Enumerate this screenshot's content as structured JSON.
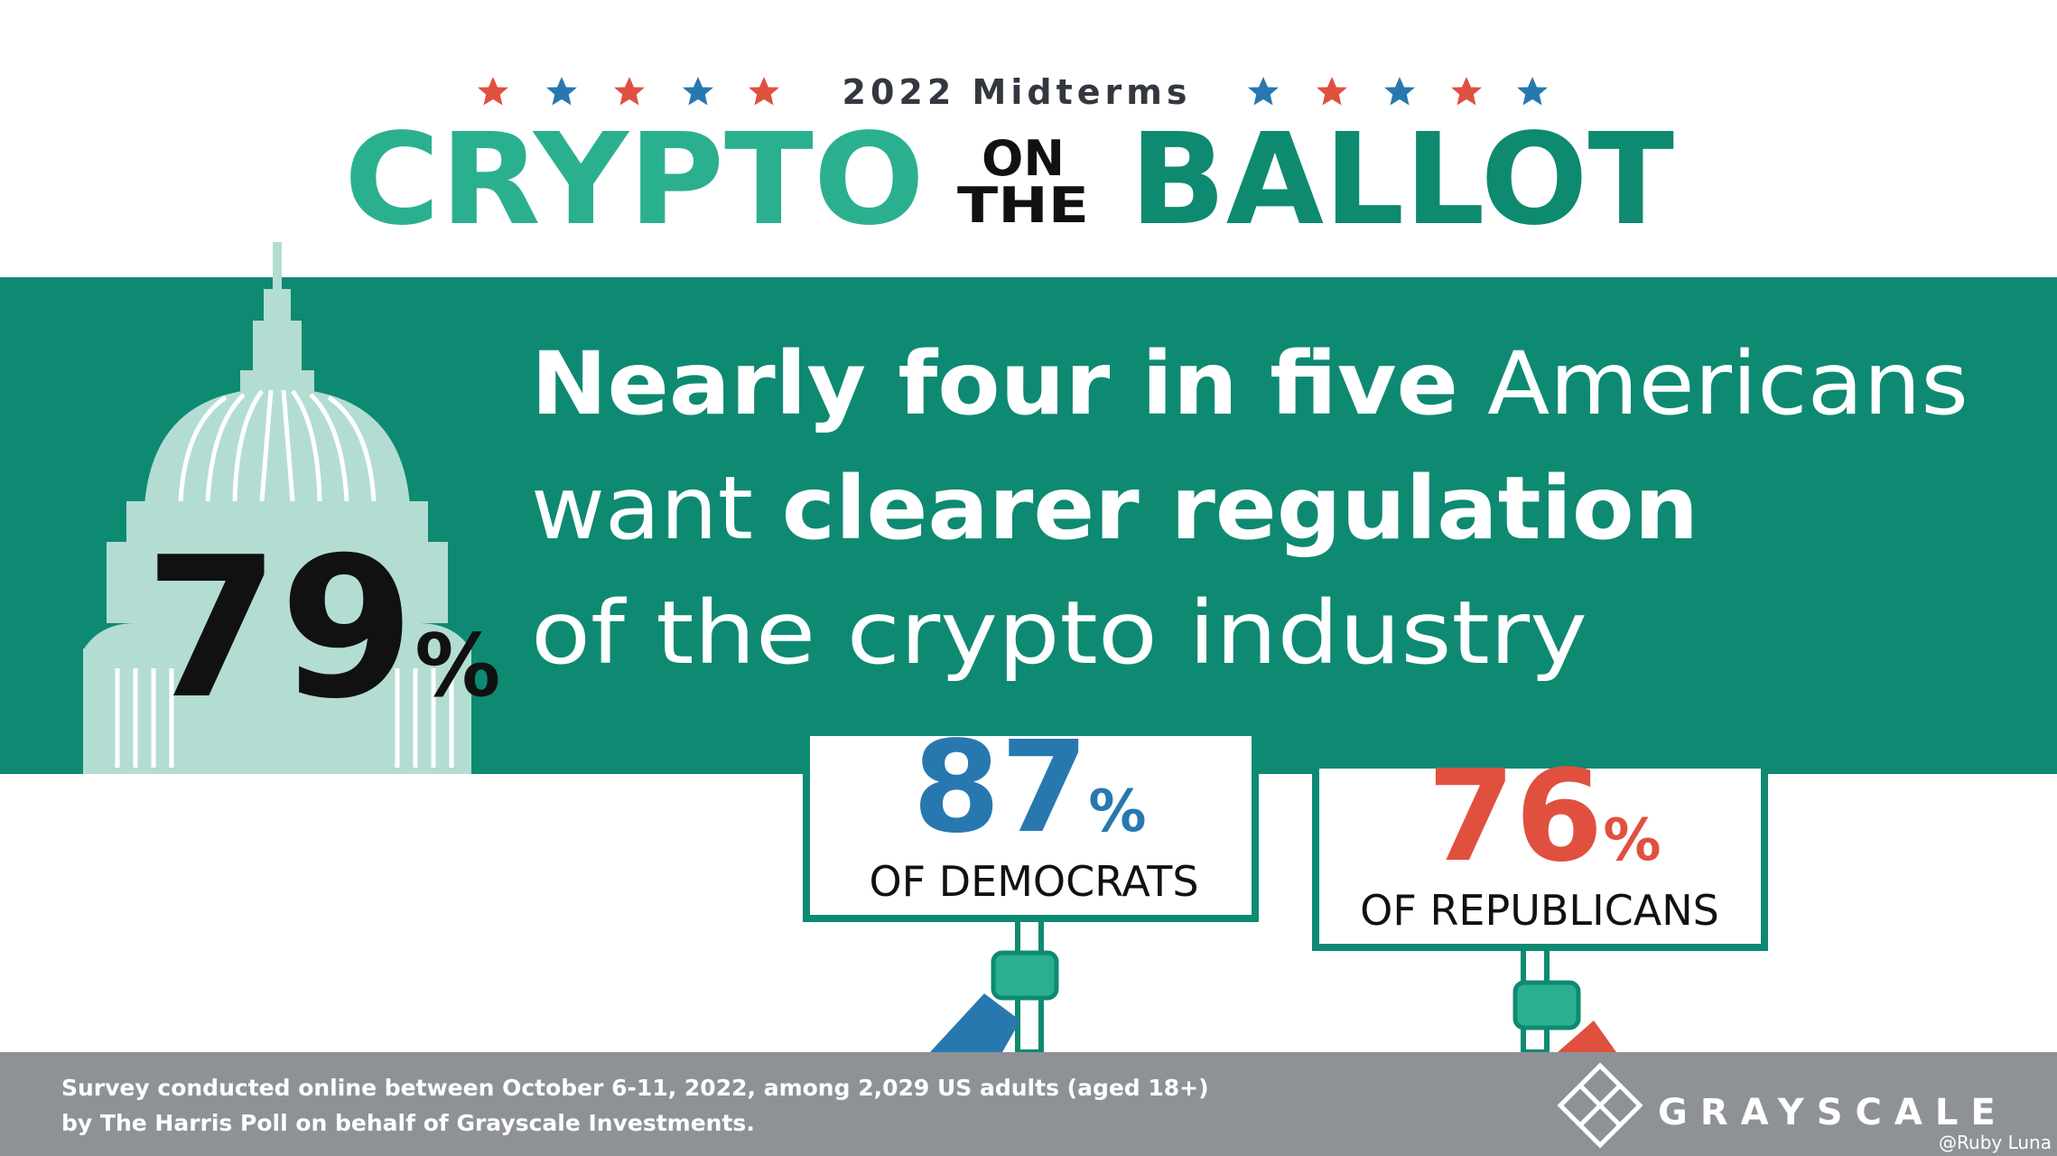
{
  "header": {
    "kicker": "2022 Midterms",
    "title_left": "CRYPTO",
    "title_mid_top": "ON",
    "title_mid_bottom": "THE",
    "title_right": "BALLOT"
  },
  "headline": {
    "line1_bold": "Nearly four in five",
    "line1_regular": "Americans",
    "line2_regular": "want",
    "line2_bold": "clearer regulation",
    "line3": "of the crypto industry"
  },
  "stat": {
    "value": 79,
    "unit": "%"
  },
  "signs": [
    {
      "value": 87,
      "unit": "%",
      "label": "OF DEMOCRATS"
    },
    {
      "value": 76,
      "unit": "%",
      "label": "OF REPUBLICANS"
    }
  ],
  "footer": {
    "note_line1": "Survey conducted online between October 6-11, 2022, among 2,029 US adults (aged 18+)",
    "note_line2": "by The Harris Poll on behalf of Grayscale Investments.",
    "brand": "GRAYSCALE",
    "watermark": "@Ruby Luna"
  }
}
